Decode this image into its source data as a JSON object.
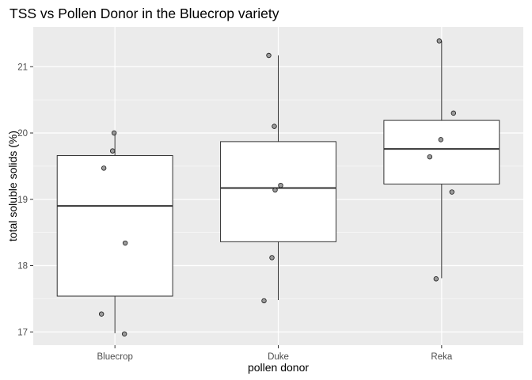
{
  "chart_data": {
    "type": "boxplot",
    "title": "TSS vs Pollen Donor in the Bluecrop variety",
    "xlabel": "pollen donor",
    "ylabel": "total soluble solids (%)",
    "ylim": [
      16.8,
      21.6
    ],
    "yticks": [
      17,
      18,
      19,
      20,
      21
    ],
    "categories": [
      "Bluecrop",
      "Duke",
      "Reka"
    ],
    "boxes": [
      {
        "category": "Bluecrop",
        "whisker_low": 16.98,
        "q1": 17.54,
        "median": 18.9,
        "q3": 19.66,
        "whisker_high": 20.0
      },
      {
        "category": "Duke",
        "whisker_low": 17.48,
        "q1": 18.36,
        "median": 19.17,
        "q3": 19.87,
        "whisker_high": 21.17
      },
      {
        "category": "Reka",
        "whisker_low": 17.81,
        "q1": 19.23,
        "median": 19.76,
        "q3": 20.19,
        "whisker_high": 21.39
      }
    ],
    "points": [
      {
        "category": "Bluecrop",
        "values": [
          20.0,
          19.73,
          19.47,
          18.34,
          17.27,
          16.97
        ]
      },
      {
        "category": "Duke",
        "values": [
          21.17,
          20.1,
          19.21,
          19.14,
          18.12,
          17.47
        ]
      },
      {
        "category": "Reka",
        "values": [
          21.39,
          20.3,
          19.9,
          19.64,
          19.11,
          17.8
        ]
      }
    ],
    "grid": true,
    "panel_background": "#ebebeb",
    "gridline_color": "#ffffff",
    "box_fill": "#ffffff",
    "line_color": "#333333",
    "point_fill": "#8c8c8c"
  }
}
